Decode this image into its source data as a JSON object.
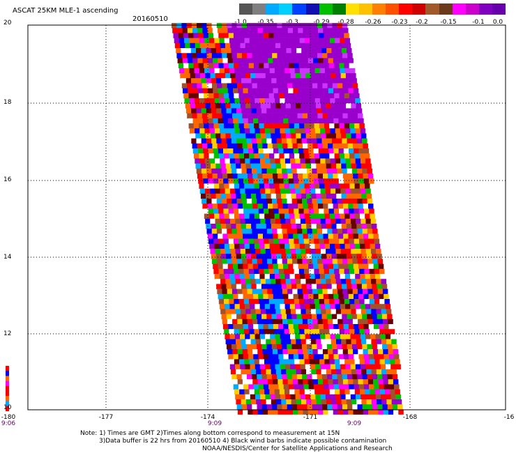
{
  "header": {
    "title": "ASCAT 25KM MLE-1 ascending",
    "date": "20160510"
  },
  "colorbar": {
    "segments": [
      "#555555",
      "#7f7f7f",
      "#00aaff",
      "#00d0ff",
      "#0040ff",
      "#1010b0",
      "#00c000",
      "#008000",
      "#ffe000",
      "#ffc000",
      "#ff8000",
      "#ff5000",
      "#ff0000",
      "#d00000",
      "#a05a2a",
      "#6a3a1a",
      "#ff00ff",
      "#cc00cc",
      "#8000c0",
      "#6600aa"
    ],
    "labels": [
      "-1.0",
      "-0.35",
      "-0.3",
      "-0.29",
      "-0.28",
      "-0.26",
      "-0.23",
      "-0.2",
      "-0.15",
      "-0.1",
      "0.0"
    ]
  },
  "axes": {
    "lat_labels": [
      "20",
      "18",
      "16",
      "14",
      "12",
      "10"
    ],
    "lon_labels": [
      "-180",
      "-177",
      "-174",
      "-171",
      "-168",
      "-16"
    ],
    "time_labels": [
      "9:06",
      "9:09",
      "9:09"
    ]
  },
  "palette": [
    "#ff0000",
    "#ff0000",
    "#ff6600",
    "#ff6600",
    "#ffcc00",
    "#ff00ff",
    "#a0522d",
    "#9900cc",
    "#0000ff",
    "#00aaff",
    "#00c000",
    "#ffffff",
    "#660000"
  ],
  "notes": {
    "line1": "Note: 1) Times are GMT 2)Times along bottom correspond to measurement at 15N",
    "line2": "3)Data buffer is 22 hrs from 20160510 4) Black wind barbs indicate possible contamination",
    "line3": "NOAA/NESDIS/Center for Satellite Applications and Research"
  }
}
